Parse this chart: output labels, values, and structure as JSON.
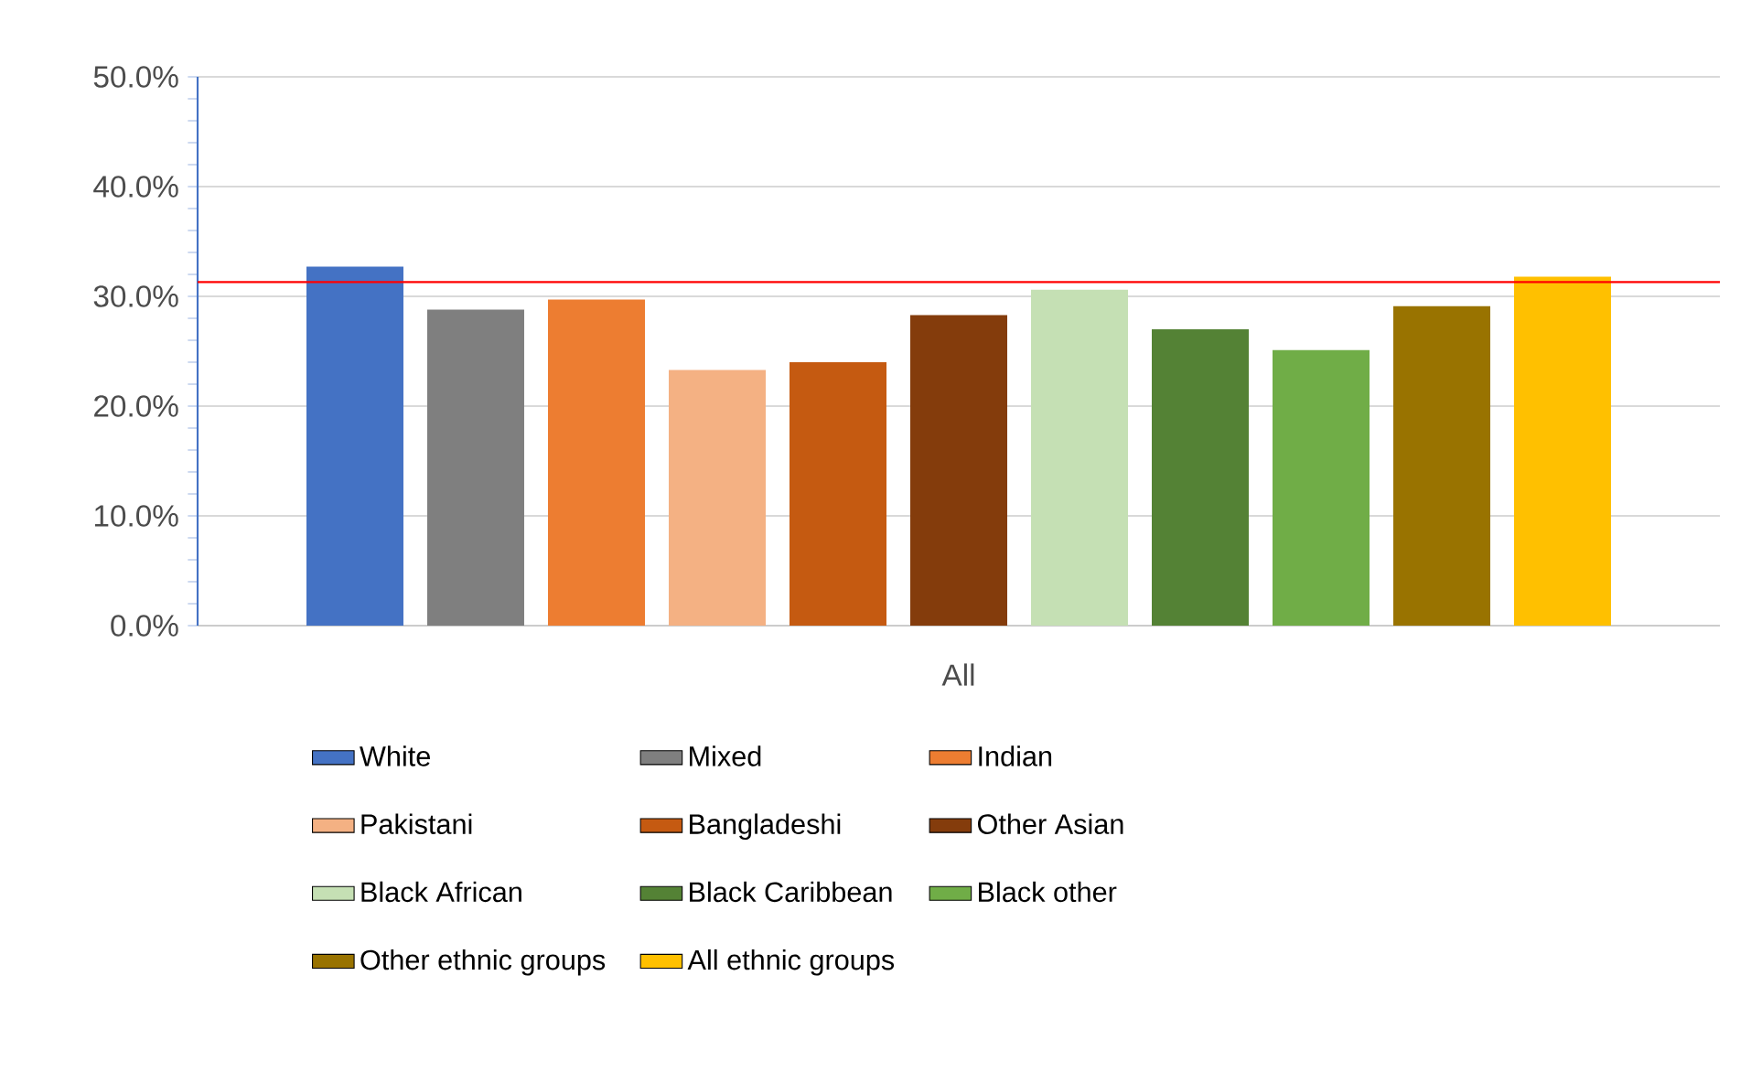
{
  "chart_data": {
    "type": "bar",
    "categories": [
      "All"
    ],
    "series": [
      {
        "name": "White",
        "color": "#4472c4",
        "values": [
          32.7
        ]
      },
      {
        "name": "Mixed",
        "color": "#7f7f7f",
        "values": [
          28.8
        ]
      },
      {
        "name": "Indian",
        "color": "#ed7d31",
        "values": [
          29.7
        ]
      },
      {
        "name": "Pakistani",
        "color": "#f4b183",
        "values": [
          23.3
        ]
      },
      {
        "name": "Bangladeshi",
        "color": "#c55a11",
        "values": [
          24.0
        ]
      },
      {
        "name": "Other Asian",
        "color": "#843c0c",
        "values": [
          28.3
        ]
      },
      {
        "name": "Black African",
        "color": "#c5e0b4",
        "values": [
          30.6
        ]
      },
      {
        "name": "Black Caribbean",
        "color": "#548235",
        "values": [
          27.0
        ]
      },
      {
        "name": "Black other",
        "color": "#70ad47",
        "values": [
          25.1
        ]
      },
      {
        "name": "Other ethnic groups",
        "color": "#997300",
        "values": [
          29.1
        ]
      },
      {
        "name": "All ethnic groups",
        "color": "#ffc000",
        "values": [
          31.8
        ]
      }
    ],
    "ylim": [
      0,
      50
    ],
    "yticks": [
      {
        "value": 0,
        "label": "0.0%"
      },
      {
        "value": 10,
        "label": "10.0%"
      },
      {
        "value": 20,
        "label": "20.0%"
      },
      {
        "value": 30,
        "label": "30.0%"
      },
      {
        "value": 40,
        "label": "40.0%"
      },
      {
        "value": 50,
        "label": "50.0%"
      }
    ],
    "ref_lines": [
      {
        "axis": "y",
        "value": 31.3,
        "color": "#ff0000"
      }
    ],
    "grid": "y",
    "legend": "bottom"
  }
}
